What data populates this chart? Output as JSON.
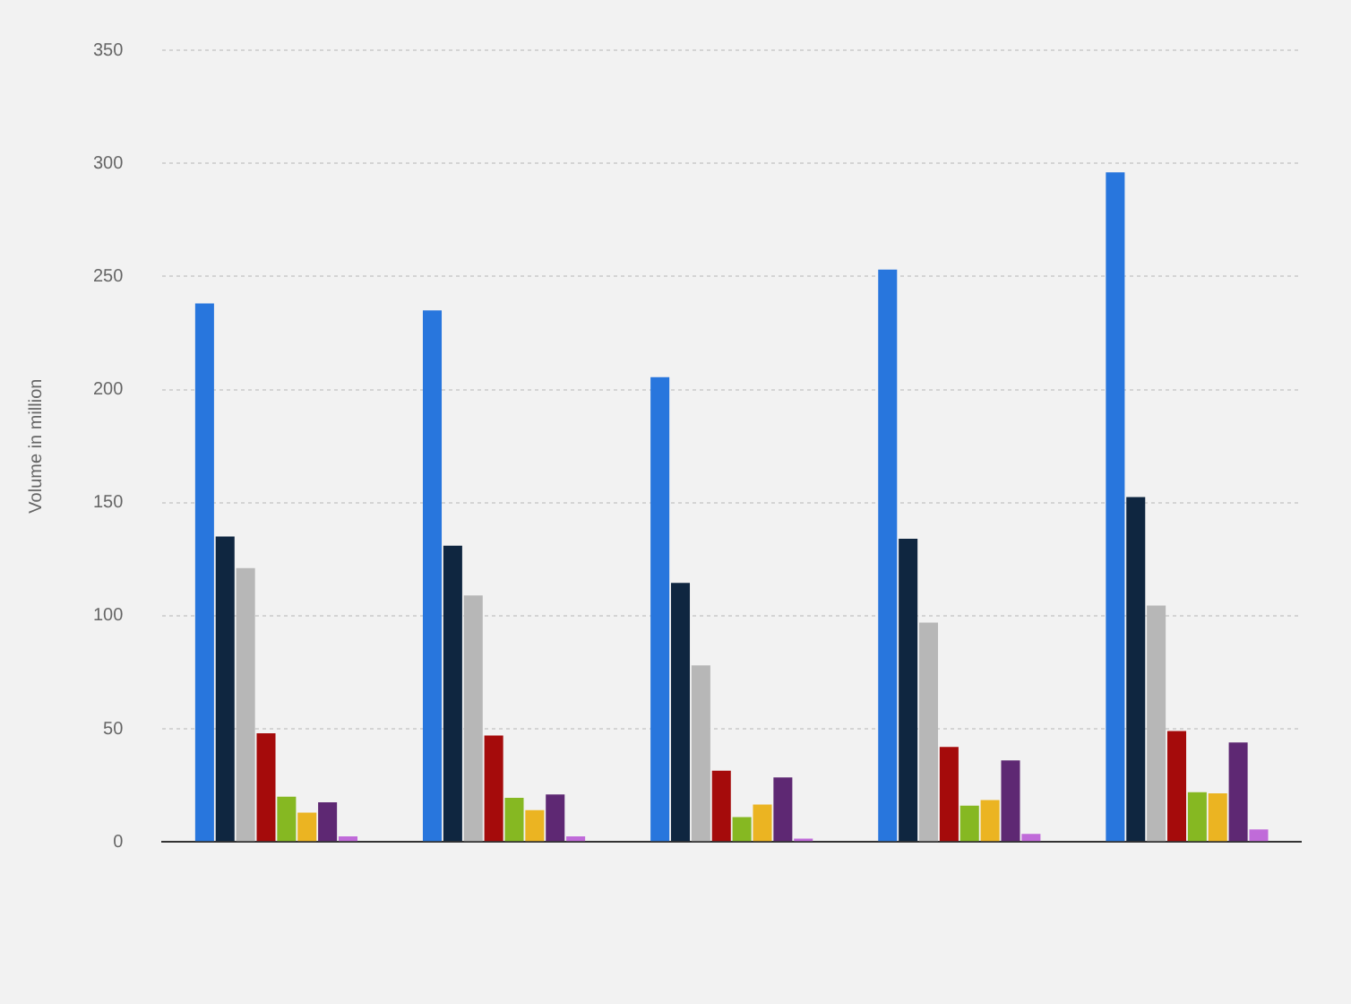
{
  "chart_data": {
    "type": "bar",
    "ylabel": "Volume in million",
    "categories": [
      null,
      null,
      null,
      null,
      null
    ],
    "series": [
      {
        "color": "#2876dd",
        "values": [
          238,
          235,
          205.5,
          253,
          296
        ]
      },
      {
        "color": "#0f2640",
        "values": [
          135,
          131,
          114.5,
          134,
          152.5
        ]
      },
      {
        "color": "#b7b7b7",
        "values": [
          121,
          109,
          78,
          97,
          104.5
        ]
      },
      {
        "color": "#a50b0b",
        "values": [
          48,
          47,
          31.5,
          42,
          49
        ]
      },
      {
        "color": "#86b822",
        "values": [
          20,
          19.5,
          11,
          16,
          22
        ]
      },
      {
        "color": "#ebb422",
        "values": [
          13,
          14,
          16.5,
          18.5,
          21.5
        ]
      },
      {
        "color": "#5e2873",
        "values": [
          17.5,
          21,
          28.5,
          36,
          44
        ]
      },
      {
        "color": "#c06bd9",
        "values": [
          2.5,
          2.5,
          1.5,
          3.5,
          5.5
        ]
      }
    ],
    "ylim": [
      0,
      350
    ],
    "yticks": [
      0,
      50,
      100,
      150,
      200,
      250,
      300,
      350
    ],
    "grid": "y",
    "legend": false
  }
}
